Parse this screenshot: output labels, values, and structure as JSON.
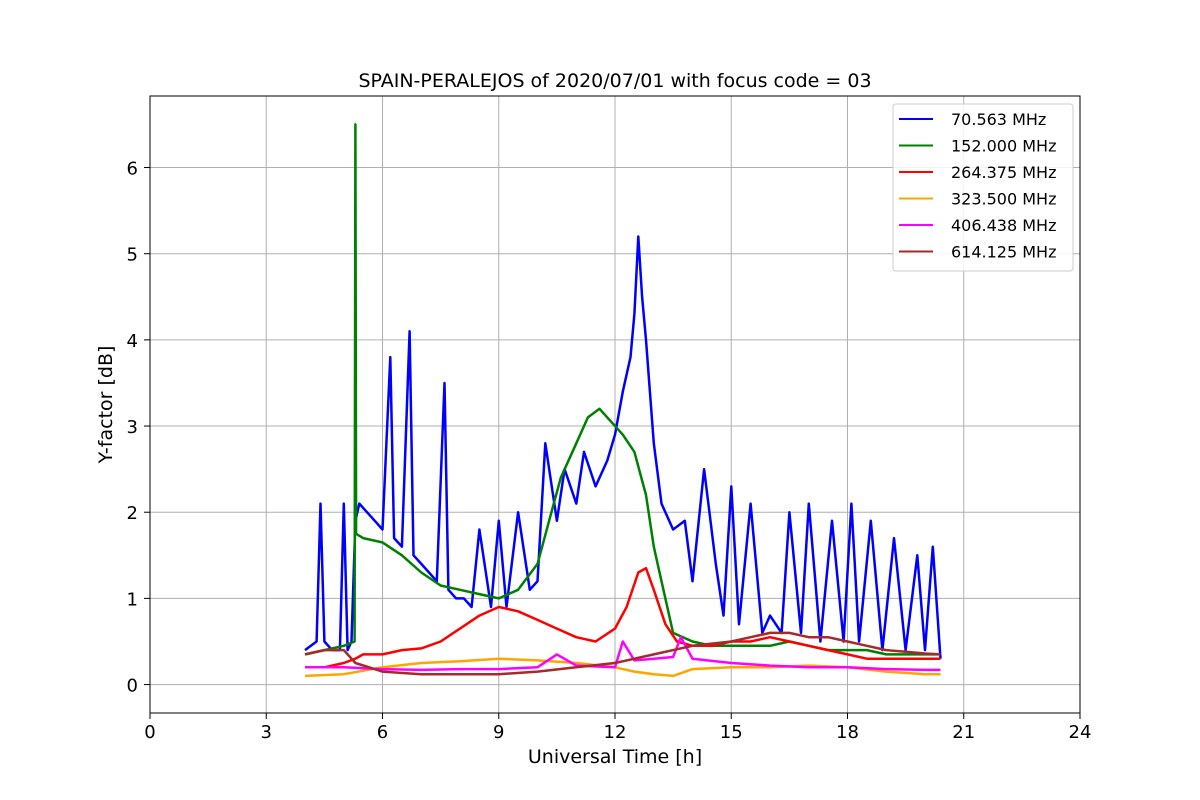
{
  "chart_data": {
    "type": "line",
    "title": "SPAIN-PERALEJOS of 2020/07/01 with focus code = 03",
    "xlabel": "Universal Time [h]",
    "ylabel": "Y-factor [dB]",
    "xlim": [
      0,
      24
    ],
    "ylim": [
      -0.33,
      6.83
    ],
    "xticks": [
      0,
      3,
      6,
      9,
      12,
      15,
      18,
      21,
      24
    ],
    "yticks": [
      0,
      1,
      2,
      3,
      4,
      5,
      6
    ],
    "grid": true,
    "legend_position": "top-right",
    "series": [
      {
        "name": " 70.563 MHz",
        "color": "#0000ff",
        "x": [
          4.0,
          4.3,
          4.4,
          4.5,
          4.7,
          4.9,
          5.0,
          5.1,
          5.2,
          5.3,
          5.4,
          5.6,
          5.8,
          6.0,
          6.2,
          6.3,
          6.5,
          6.7,
          6.8,
          7.0,
          7.2,
          7.4,
          7.6,
          7.7,
          7.9,
          8.1,
          8.3,
          8.5,
          8.8,
          9.0,
          9.2,
          9.5,
          9.8,
          10.0,
          10.2,
          10.5,
          10.7,
          11.0,
          11.2,
          11.5,
          11.8,
          12.0,
          12.2,
          12.4,
          12.5,
          12.6,
          12.7,
          12.8,
          13.0,
          13.2,
          13.5,
          13.8,
          14.0,
          14.3,
          14.6,
          14.8,
          15.0,
          15.2,
          15.5,
          15.8,
          16.0,
          16.3,
          16.5,
          16.8,
          17.0,
          17.3,
          17.6,
          17.9,
          18.1,
          18.3,
          18.6,
          18.9,
          19.2,
          19.5,
          19.8,
          20.0,
          20.2,
          20.4
        ],
        "y": [
          0.4,
          0.5,
          2.1,
          0.5,
          0.4,
          0.4,
          2.1,
          0.4,
          0.5,
          1.9,
          2.1,
          2.0,
          1.9,
          1.8,
          3.8,
          1.7,
          1.6,
          4.1,
          1.5,
          1.4,
          1.3,
          1.2,
          3.5,
          1.1,
          1.0,
          1.0,
          0.9,
          1.8,
          0.9,
          1.9,
          0.9,
          2.0,
          1.1,
          1.2,
          2.8,
          1.9,
          2.5,
          2.1,
          2.7,
          2.3,
          2.6,
          2.9,
          3.4,
          3.8,
          4.3,
          5.2,
          4.5,
          4.0,
          2.8,
          2.1,
          1.8,
          1.9,
          1.2,
          2.5,
          1.4,
          0.8,
          2.3,
          0.7,
          2.1,
          0.6,
          0.8,
          0.6,
          2.0,
          0.6,
          2.1,
          0.5,
          1.9,
          0.5,
          2.1,
          0.5,
          1.9,
          0.4,
          1.7,
          0.4,
          1.5,
          0.4,
          1.6,
          0.3
        ]
      },
      {
        "name": "152.000 MHz",
        "color": "#008000",
        "x": [
          4.0,
          4.5,
          5.0,
          5.28,
          5.3,
          5.32,
          5.5,
          6.0,
          6.5,
          7.0,
          7.5,
          8.0,
          8.5,
          9.0,
          9.5,
          10.0,
          10.3,
          10.6,
          11.0,
          11.3,
          11.6,
          11.9,
          12.2,
          12.5,
          12.8,
          13.0,
          13.2,
          13.5,
          14.0,
          14.5,
          15.0,
          15.5,
          16.0,
          16.5,
          17.0,
          17.5,
          18.0,
          18.5,
          19.0,
          19.5,
          20.0,
          20.4
        ],
        "y": [
          0.35,
          0.4,
          0.45,
          0.5,
          6.5,
          1.75,
          1.7,
          1.65,
          1.5,
          1.3,
          1.15,
          1.1,
          1.05,
          1.0,
          1.1,
          1.4,
          1.9,
          2.4,
          2.8,
          3.1,
          3.2,
          3.05,
          2.9,
          2.7,
          2.2,
          1.6,
          1.2,
          0.6,
          0.5,
          0.45,
          0.45,
          0.45,
          0.45,
          0.5,
          0.45,
          0.4,
          0.4,
          0.4,
          0.35,
          0.35,
          0.35,
          0.35
        ]
      },
      {
        "name": "264.375 MHz",
        "color": "#ff0000",
        "x": [
          4.0,
          4.5,
          5.0,
          5.3,
          5.5,
          6.0,
          6.5,
          7.0,
          7.5,
          8.0,
          8.5,
          9.0,
          9.5,
          10.0,
          10.5,
          11.0,
          11.5,
          12.0,
          12.3,
          12.6,
          12.8,
          13.0,
          13.3,
          13.6,
          14.0,
          14.5,
          15.0,
          15.5,
          16.0,
          16.5,
          17.0,
          17.5,
          18.0,
          18.5,
          19.0,
          19.5,
          20.0,
          20.4
        ],
        "y": [
          0.2,
          0.2,
          0.25,
          0.3,
          0.35,
          0.35,
          0.4,
          0.42,
          0.5,
          0.65,
          0.8,
          0.9,
          0.85,
          0.75,
          0.65,
          0.55,
          0.5,
          0.65,
          0.9,
          1.3,
          1.35,
          1.1,
          0.7,
          0.5,
          0.45,
          0.45,
          0.5,
          0.5,
          0.55,
          0.5,
          0.45,
          0.4,
          0.35,
          0.3,
          0.3,
          0.3,
          0.3,
          0.3
        ]
      },
      {
        "name": "323.500 MHz",
        "color": "#ffa500",
        "x": [
          4.0,
          5.0,
          6.0,
          7.0,
          8.0,
          9.0,
          10.0,
          11.0,
          12.0,
          12.5,
          13.0,
          13.5,
          14.0,
          15.0,
          16.0,
          17.0,
          18.0,
          19.0,
          20.0,
          20.4
        ],
        "y": [
          0.1,
          0.12,
          0.2,
          0.25,
          0.27,
          0.3,
          0.28,
          0.25,
          0.2,
          0.15,
          0.12,
          0.1,
          0.18,
          0.2,
          0.2,
          0.22,
          0.2,
          0.15,
          0.12,
          0.12
        ]
      },
      {
        "name": "406.438 MHz",
        "color": "#ff00ff",
        "x": [
          4.0,
          5.0,
          6.0,
          7.0,
          8.0,
          9.0,
          10.0,
          10.5,
          11.0,
          12.0,
          12.2,
          12.5,
          13.0,
          13.5,
          13.7,
          14.0,
          15.0,
          16.0,
          17.0,
          18.0,
          19.0,
          20.0,
          20.4
        ],
        "y": [
          0.2,
          0.2,
          0.18,
          0.17,
          0.18,
          0.18,
          0.2,
          0.35,
          0.22,
          0.2,
          0.5,
          0.28,
          0.3,
          0.32,
          0.55,
          0.3,
          0.25,
          0.22,
          0.2,
          0.2,
          0.18,
          0.17,
          0.17
        ]
      },
      {
        "name": "614.125 MHz",
        "color": "#a52a2a",
        "x": [
          4.0,
          4.5,
          5.0,
          5.3,
          6.0,
          7.0,
          8.0,
          9.0,
          10.0,
          11.0,
          12.0,
          13.0,
          14.0,
          15.0,
          15.5,
          16.0,
          16.5,
          17.0,
          17.5,
          18.0,
          18.5,
          19.0,
          19.5,
          20.0,
          20.4
        ],
        "y": [
          0.35,
          0.4,
          0.4,
          0.25,
          0.15,
          0.12,
          0.12,
          0.12,
          0.15,
          0.2,
          0.25,
          0.35,
          0.45,
          0.5,
          0.55,
          0.6,
          0.6,
          0.55,
          0.55,
          0.5,
          0.45,
          0.4,
          0.38,
          0.36,
          0.35
        ]
      }
    ]
  }
}
